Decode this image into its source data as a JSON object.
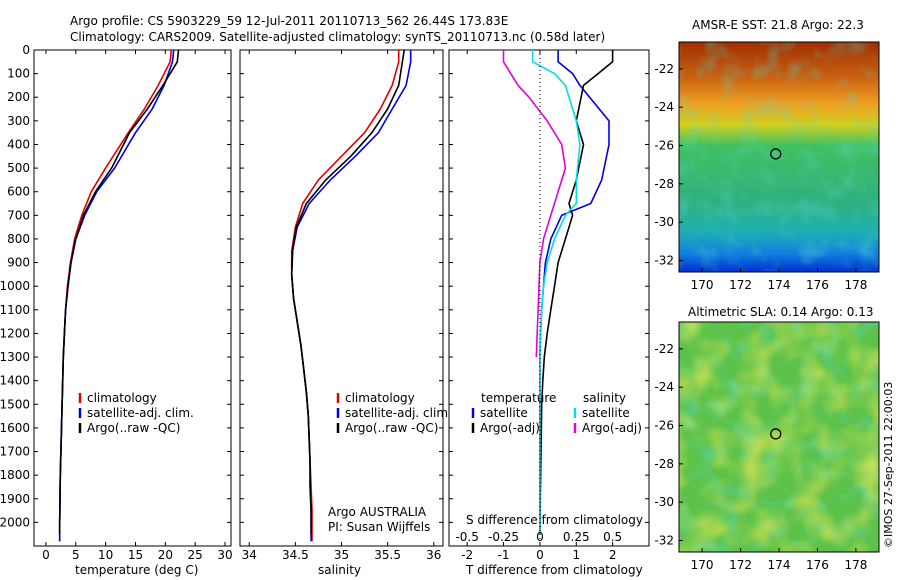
{
  "header": {
    "line1": "Argo profile: CS 5903229_59 12-Jul-2011 20110713_562 26.44S 173.83E",
    "line2": "Climatology: CARS2009. Satellite-adjusted climatology: synTS_20110713.nc (0.58d later)"
  },
  "colors": {
    "climatology": "#e00000",
    "satellite": "#0000e0",
    "argo": "#000000",
    "sat_salinity": "#00e0e0",
    "argo_salinity": "#e000e0"
  },
  "depth_ticks": [
    0,
    100,
    200,
    300,
    400,
    500,
    600,
    700,
    800,
    900,
    1000,
    1100,
    1200,
    1300,
    1400,
    1500,
    1600,
    1700,
    1800,
    1900,
    2000
  ],
  "panels": {
    "temperature": {
      "xlabel": "temperature (deg C)",
      "xticks": [
        0,
        5,
        10,
        15,
        20,
        25,
        30
      ],
      "xlim": [
        -2,
        31
      ],
      "legend": [
        "climatology",
        "satellite-adj. clim.",
        "Argo(..raw -QC)"
      ]
    },
    "salinity": {
      "xlabel": "salinity",
      "xticks": [
        34,
        34.5,
        35,
        35.5,
        36
      ],
      "xlim": [
        33.9,
        36.1
      ],
      "legend": [
        "climatology",
        "satellite-adj. clim.",
        "Argo(..raw -QC)"
      ],
      "note1": "Argo AUSTRALIA",
      "note2": "PI: Susan Wijffels"
    },
    "difference": {
      "xlabel": "T difference from climatology",
      "xlabel_top": "S difference from climatology",
      "xticks": [
        -2,
        -1,
        0,
        1,
        2
      ],
      "xticks_s": [
        "-0.5",
        "-0.25",
        "0",
        "0.25",
        "0.5"
      ],
      "xlim": [
        -2.5,
        3
      ],
      "legend_t_title": "temperature",
      "legend_s_title": "salinity",
      "legend_t": [
        "satellite",
        "Argo(-adj)"
      ],
      "legend_s": [
        "satellite",
        "Argo(-adj)"
      ]
    }
  },
  "maps": {
    "sst_title": "AMSR-E SST: 21.8 Argo: 22.3",
    "sla_title": "Altimetric SLA: 0.14 Argo: 0.13",
    "xticks": [
      170,
      172,
      174,
      176,
      178
    ],
    "yticks": [
      -22,
      -24,
      -26,
      -28,
      -30,
      -32
    ],
    "lon_range": [
      168.8,
      179.2
    ],
    "lat_range": [
      -32.6,
      -20.6
    ],
    "profile_pos": {
      "lon": 173.83,
      "lat": -26.44
    }
  },
  "stamp": "©IMOS 27-Sep-2011 22:00:03",
  "chart_data": [
    {
      "type": "line",
      "title": "",
      "xlabel": "temperature (deg C)",
      "ylabel": "",
      "xlim": [
        -2,
        31
      ],
      "ylim": [
        2100,
        0
      ],
      "series": [
        {
          "name": "climatology",
          "x": [
            21.0,
            20.8,
            18.8,
            16.5,
            13.8,
            10.0,
            7.6,
            6.0,
            4.8,
            4.1,
            3.6,
            3.3,
            3.1,
            2.9,
            2.8,
            2.7,
            2.6,
            2.5,
            2.4,
            2.35,
            2.3,
            2.3
          ],
          "y": [
            0,
            50,
            150,
            250,
            350,
            500,
            600,
            700,
            800,
            900,
            1000,
            1100,
            1200,
            1300,
            1400,
            1500,
            1600,
            1700,
            1800,
            1900,
            2000,
            2080
          ]
        },
        {
          "name": "satellite-adj. clim.",
          "x": [
            21.4,
            21.2,
            19.8,
            17.8,
            15.0,
            11.5,
            8.5,
            6.5,
            5.0,
            4.2,
            3.7,
            3.3,
            3.1,
            2.9,
            2.8,
            2.7,
            2.6,
            2.5,
            2.4,
            2.35,
            2.3,
            2.3
          ],
          "y": [
            0,
            50,
            150,
            250,
            350,
            500,
            600,
            700,
            800,
            900,
            1000,
            1100,
            1200,
            1300,
            1400,
            1500,
            1600,
            1700,
            1800,
            1900,
            2000,
            2080
          ]
        },
        {
          "name": "Argo(..raw -QC)",
          "x": [
            22.2,
            22.0,
            19.6,
            17.0,
            14.0,
            11.0,
            8.3,
            6.3,
            5.0,
            4.2,
            3.7,
            3.3,
            3.1,
            2.9,
            2.8,
            2.7,
            2.6,
            2.5,
            2.4,
            2.35,
            2.3,
            2.3
          ],
          "y": [
            0,
            50,
            150,
            250,
            350,
            500,
            600,
            700,
            800,
            900,
            1000,
            1100,
            1200,
            1300,
            1400,
            1500,
            1600,
            1700,
            1800,
            1900,
            2000,
            2050
          ]
        }
      ]
    },
    {
      "type": "line",
      "title": "",
      "xlabel": "salinity",
      "ylabel": "",
      "xlim": [
        33.9,
        36.1
      ],
      "ylim": [
        2100,
        0
      ],
      "series": [
        {
          "name": "climatology",
          "x": [
            35.62,
            35.62,
            35.55,
            35.42,
            35.25,
            35.0,
            34.75,
            34.58,
            34.5,
            34.46,
            34.46,
            34.48,
            34.52,
            34.56,
            34.59,
            34.62,
            34.64,
            34.65,
            34.66,
            34.67,
            34.68,
            34.68
          ],
          "y": [
            0,
            50,
            150,
            250,
            350,
            450,
            550,
            650,
            750,
            850,
            950,
            1050,
            1150,
            1250,
            1350,
            1450,
            1550,
            1650,
            1750,
            1850,
            1950,
            2080
          ]
        },
        {
          "name": "satellite-adj. clim.",
          "x": [
            35.75,
            35.75,
            35.7,
            35.55,
            35.4,
            35.15,
            34.88,
            34.65,
            34.52,
            34.47,
            34.46,
            34.48,
            34.52,
            34.56,
            34.59,
            34.62,
            34.64,
            34.65,
            34.66,
            34.66,
            34.67,
            34.67
          ],
          "y": [
            0,
            50,
            150,
            250,
            350,
            450,
            550,
            650,
            750,
            850,
            950,
            1050,
            1150,
            1250,
            1350,
            1450,
            1550,
            1650,
            1750,
            1850,
            1950,
            2080
          ]
        },
        {
          "name": "Argo(..raw -QC)",
          "x": [
            35.68,
            35.66,
            35.62,
            35.5,
            35.33,
            35.1,
            34.83,
            34.62,
            34.51,
            34.47,
            34.46,
            34.48,
            34.52,
            34.56,
            34.59,
            34.62,
            34.64,
            34.65,
            34.66,
            34.66,
            34.67,
            34.67
          ],
          "y": [
            0,
            50,
            150,
            250,
            350,
            450,
            550,
            650,
            750,
            850,
            950,
            1050,
            1150,
            1250,
            1350,
            1450,
            1550,
            1650,
            1750,
            1850,
            1950,
            2050
          ]
        }
      ]
    },
    {
      "type": "line",
      "title": "",
      "xlabel": "T difference from climatology",
      "ylabel": "",
      "xlim": [
        -2.5,
        3
      ],
      "ylim": [
        2100,
        0
      ],
      "series": [
        {
          "name": "satellite",
          "x": [
            0.5,
            0.5,
            0.9,
            1.1,
            1.9,
            1.9,
            1.7,
            1.4,
            0.6,
            0.3,
            0.15,
            0.1,
            0.05,
            0.02,
            0.0,
            0.0,
            0.0,
            0.0,
            0.0,
            0.0
          ],
          "y": [
            0,
            50,
            100,
            150,
            300,
            400,
            550,
            650,
            700,
            800,
            900,
            1000,
            1100,
            1200,
            1300,
            1400,
            1500,
            1700,
            1900,
            2050
          ]
        },
        {
          "name": "Argo(-adj)",
          "x": [
            2.0,
            2.0,
            1.6,
            1.2,
            1.0,
            1.2,
            1.0,
            0.8,
            0.9,
            0.7,
            0.5,
            0.4,
            0.3,
            0.2,
            0.12,
            0.08,
            0.05,
            0.03,
            0.01,
            0.0
          ],
          "y": [
            0,
            50,
            100,
            150,
            300,
            400,
            550,
            650,
            700,
            800,
            900,
            1000,
            1100,
            1200,
            1300,
            1400,
            1500,
            1700,
            1900,
            2050
          ]
        },
        {
          "name": "satellite",
          "x": [
            -0.2,
            -0.2,
            0.4,
            0.7,
            1.0,
            1.1,
            1.0,
            1.0,
            0.7,
            0.4,
            0.2,
            0.1,
            0.05,
            0.02,
            0.0,
            0.0,
            0.0,
            0.0,
            0.0
          ],
          "y": [
            0,
            50,
            100,
            150,
            300,
            400,
            550,
            650,
            700,
            800,
            900,
            1000,
            1100,
            1200,
            1300,
            1400,
            1500,
            1700,
            2050
          ]
        },
        {
          "name": "Argo(-adj)",
          "x": [
            -1.0,
            -1.0,
            -0.6,
            -0.3,
            0.2,
            0.6,
            0.7,
            0.5,
            0.3,
            0.1,
            0.0,
            -0.05,
            -0.1
          ],
          "y": [
            0,
            50,
            150,
            200,
            300,
            400,
            500,
            600,
            700,
            800,
            900,
            1100,
            1300
          ]
        }
      ]
    }
  ]
}
